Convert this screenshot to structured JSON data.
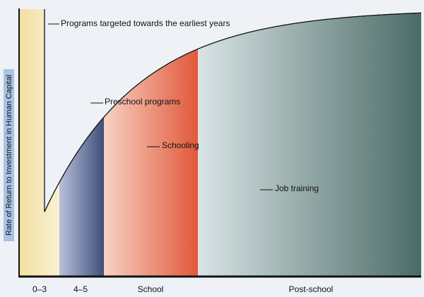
{
  "chart_data": {
    "type": "area",
    "title": "",
    "xlabel": "",
    "ylabel": "Rate of Return to Investment in Human Capital",
    "curve_shape": "decreasing",
    "periods": [
      {
        "label": "0–3",
        "color_top": "#f4e3aa",
        "color_bottom": "#f9efcc"
      },
      {
        "label": "4–5",
        "color_top": "#8e9ac4",
        "color_bottom": "#4c5c88"
      },
      {
        "label": "School",
        "color_top": "#f4c3b4",
        "color_bottom": "#e05a3a"
      },
      {
        "label": "Post-school",
        "color_top": "#dfe7e8",
        "color_bottom": "#4e6f6a"
      }
    ],
    "annotations": [
      {
        "text": "Programs targeted towards the earliest years"
      },
      {
        "text": "Preschool programs"
      },
      {
        "text": "Schooling"
      },
      {
        "text": "Job training"
      }
    ],
    "grid": false,
    "legend": "none"
  },
  "colors": {
    "background": "#eef1f6",
    "ylabel_bar": "#a9c3e4",
    "axis": "#111111",
    "curve": "#111111"
  }
}
